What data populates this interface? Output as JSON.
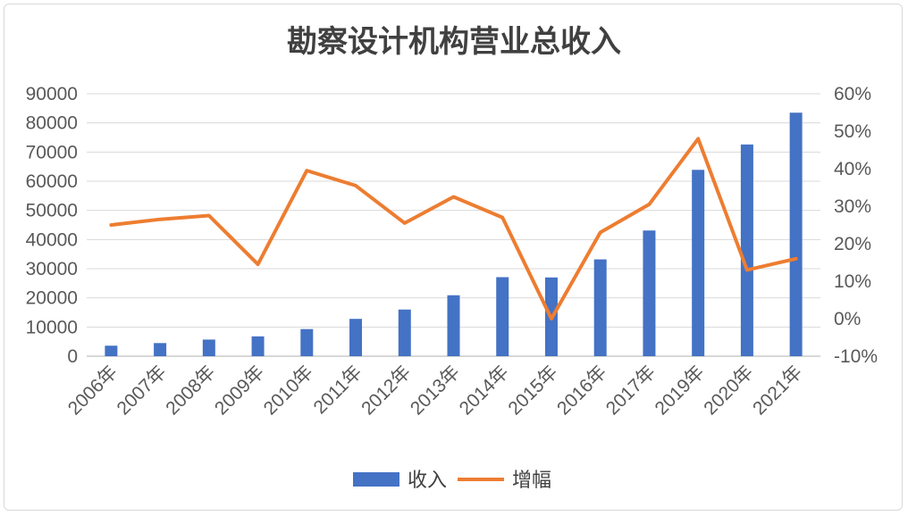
{
  "chart_data": {
    "type": "bar",
    "title": "勘察设计机构营业总收入",
    "categories": [
      "2006年",
      "2007年",
      "2008年",
      "2009年",
      "2010年",
      "2011年",
      "2012年",
      "2013年",
      "2014年",
      "2015年",
      "2016年",
      "2017年",
      "2019年",
      "2020年",
      "2021年"
    ],
    "series": [
      {
        "name": "收入",
        "type": "bar",
        "axis": "left",
        "color": "#4472C4",
        "values": [
          3600,
          4500,
          5700,
          6800,
          9300,
          12800,
          16000,
          20900,
          27100,
          27000,
          33200,
          43100,
          63900,
          72600,
          83500
        ]
      },
      {
        "name": "增幅",
        "type": "line",
        "axis": "right",
        "color": "#ED7D31",
        "values": [
          25,
          26.5,
          27.5,
          14.5,
          39.5,
          35.5,
          25.5,
          32.5,
          27,
          0,
          23,
          30.5,
          48,
          13,
          16
        ]
      }
    ],
    "y_left": {
      "min": 0,
      "max": 90000,
      "step": 10000,
      "ticks": [
        "0",
        "10000",
        "20000",
        "30000",
        "40000",
        "50000",
        "60000",
        "70000",
        "80000",
        "90000"
      ]
    },
    "y_right": {
      "min": -10,
      "max": 60,
      "step": 10,
      "ticks": [
        "-10%",
        "0%",
        "10%",
        "20%",
        "30%",
        "40%",
        "50%",
        "60%"
      ]
    },
    "grid": true,
    "legend_position": "bottom"
  }
}
